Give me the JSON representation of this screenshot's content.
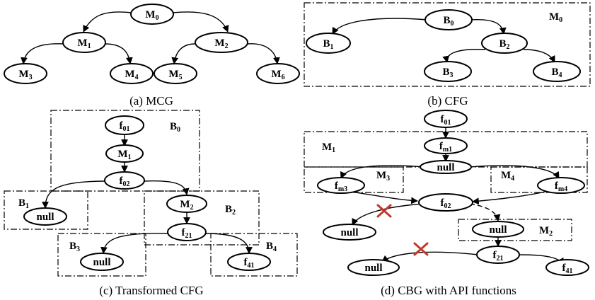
{
  "captions": {
    "a": "(a) MCG",
    "b": "(b) CFG",
    "c": "(c) Transformed CFG",
    "d": "(d) CBG with API functions"
  },
  "mcg": {
    "m0": {
      "base": "M",
      "sub": "0"
    },
    "m1": {
      "base": "M",
      "sub": "1"
    },
    "m2": {
      "base": "M",
      "sub": "2"
    },
    "m3": {
      "base": "M",
      "sub": "3"
    },
    "m4": {
      "base": "M",
      "sub": "4"
    },
    "m5": {
      "base": "M",
      "sub": "5"
    },
    "m6": {
      "base": "M",
      "sub": "6"
    }
  },
  "cfg": {
    "box_label": {
      "base": "M",
      "sub": "0"
    },
    "b0": {
      "base": "B",
      "sub": "0"
    },
    "b1": {
      "base": "B",
      "sub": "1"
    },
    "b2": {
      "base": "B",
      "sub": "2"
    },
    "b3": {
      "base": "B",
      "sub": "3"
    },
    "b4": {
      "base": "B",
      "sub": "4"
    }
  },
  "tcfg": {
    "box_b0": {
      "base": "B",
      "sub": "0"
    },
    "box_b1": {
      "base": "B",
      "sub": "1"
    },
    "box_b2": {
      "base": "B",
      "sub": "2"
    },
    "box_b3": {
      "base": "B",
      "sub": "3"
    },
    "box_b4": {
      "base": "B",
      "sub": "4"
    },
    "f01": {
      "base": "f",
      "sub": "01"
    },
    "m1": {
      "base": "M",
      "sub": "1"
    },
    "f02": {
      "base": "f",
      "sub": "02"
    },
    "null_b1": "null",
    "m2": {
      "base": "M",
      "sub": "2"
    },
    "f21": {
      "base": "f",
      "sub": "21"
    },
    "null_b3": "null",
    "f41": {
      "base": "f",
      "sub": "41"
    }
  },
  "cbg": {
    "box_m1": {
      "base": "M",
      "sub": "1"
    },
    "box_m3": {
      "base": "M",
      "sub": "3"
    },
    "box_m4": {
      "base": "M",
      "sub": "4"
    },
    "box_m2": {
      "base": "M",
      "sub": "2"
    },
    "f01": {
      "base": "f",
      "sub": "01"
    },
    "fm1": {
      "base": "f",
      "sub": "m1"
    },
    "null_m1": "null",
    "fm3": {
      "base": "f",
      "sub": "m3"
    },
    "fm4": {
      "base": "f",
      "sub": "m4"
    },
    "f02": {
      "base": "f",
      "sub": "02"
    },
    "null_left": "null",
    "null_m2": "null",
    "f21": {
      "base": "f",
      "sub": "21"
    },
    "null_bottom": "null",
    "f41": {
      "base": "f",
      "sub": "41"
    }
  }
}
